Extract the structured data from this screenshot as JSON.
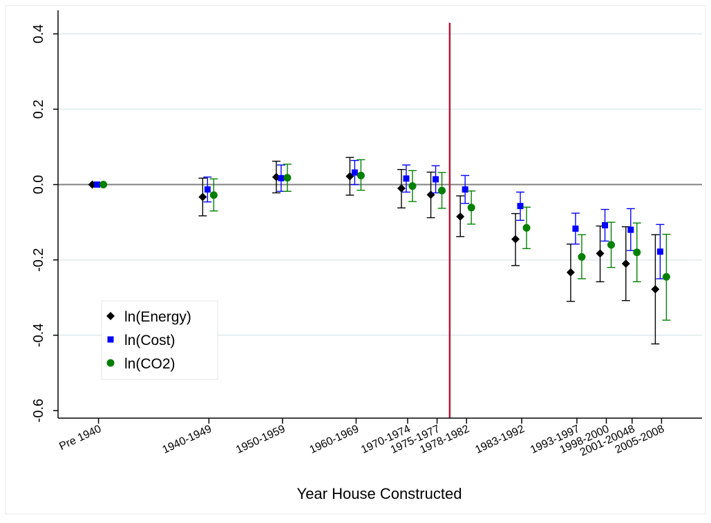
{
  "chart_data": {
    "type": "scatter",
    "title": "",
    "xlabel": "Year House Constructed",
    "ylabel": "",
    "ylim": [
      -0.62,
      0.42
    ],
    "yticks": [
      0.4,
      0.2,
      0.0,
      -0.2,
      -0.4,
      -0.6
    ],
    "ytick_labels": [
      "0.4",
      "0.2",
      "0.0",
      "-0.2",
      "-0.4",
      "-0.6"
    ],
    "grid": true,
    "legend_placement": "bottom-left",
    "zero_line": 0,
    "vertical_line_after_category": "1975-1977",
    "colors": {
      "energy": "#000000",
      "cost": "#0000ff",
      "co2": "#008000",
      "divider": "#b0173a",
      "zero_line": "#808080",
      "grid": "#e6eef0"
    },
    "categories": [
      "Pre 1940",
      "1940-1949",
      "1950-1959",
      "1960-1969",
      "1970-1974",
      "1975-1977",
      "1978-1982",
      "1983-1992",
      "1993-1997",
      "1998-2000",
      "2001-20048",
      "2005-2008"
    ],
    "category_positions": [
      1930,
      1945,
      1955,
      1965,
      1972,
      1976,
      1980,
      1987.5,
      1995,
      1999,
      2002.5,
      2006.5
    ],
    "series": [
      {
        "name": "ln(Energy)",
        "marker": "diamond",
        "values": [
          0.0,
          -0.033,
          0.02,
          0.022,
          -0.01,
          -0.027,
          -0.085,
          -0.145,
          -0.233,
          -0.183,
          -0.21,
          -0.278
        ],
        "lower": [
          0.0,
          -0.083,
          -0.022,
          -0.028,
          -0.062,
          -0.088,
          -0.138,
          -0.215,
          -0.31,
          -0.258,
          -0.308,
          -0.423
        ],
        "upper": [
          0.0,
          0.017,
          0.062,
          0.072,
          0.04,
          0.033,
          -0.03,
          -0.077,
          -0.158,
          -0.11,
          -0.112,
          -0.133
        ]
      },
      {
        "name": "ln(Cost)",
        "marker": "square",
        "values": [
          0.0,
          -0.013,
          0.017,
          0.032,
          0.016,
          0.014,
          -0.013,
          -0.057,
          -0.117,
          -0.108,
          -0.12,
          -0.178
        ],
        "lower": [
          0.0,
          -0.046,
          -0.018,
          0.0,
          -0.02,
          -0.022,
          -0.05,
          -0.095,
          -0.158,
          -0.15,
          -0.175,
          -0.25
        ],
        "upper": [
          0.0,
          0.02,
          0.052,
          0.064,
          0.052,
          0.05,
          0.024,
          -0.02,
          -0.076,
          -0.066,
          -0.064,
          -0.106
        ]
      },
      {
        "name": "ln(CO2)",
        "marker": "circle",
        "values": [
          0.0,
          -0.028,
          0.018,
          0.024,
          -0.004,
          -0.016,
          -0.061,
          -0.115,
          -0.192,
          -0.16,
          -0.18,
          -0.245
        ],
        "lower": [
          0.0,
          -0.07,
          -0.018,
          -0.015,
          -0.045,
          -0.063,
          -0.105,
          -0.17,
          -0.25,
          -0.22,
          -0.258,
          -0.36
        ],
        "upper": [
          0.0,
          0.015,
          0.054,
          0.066,
          0.037,
          0.032,
          -0.017,
          -0.06,
          -0.133,
          -0.1,
          -0.102,
          -0.132
        ]
      }
    ]
  }
}
